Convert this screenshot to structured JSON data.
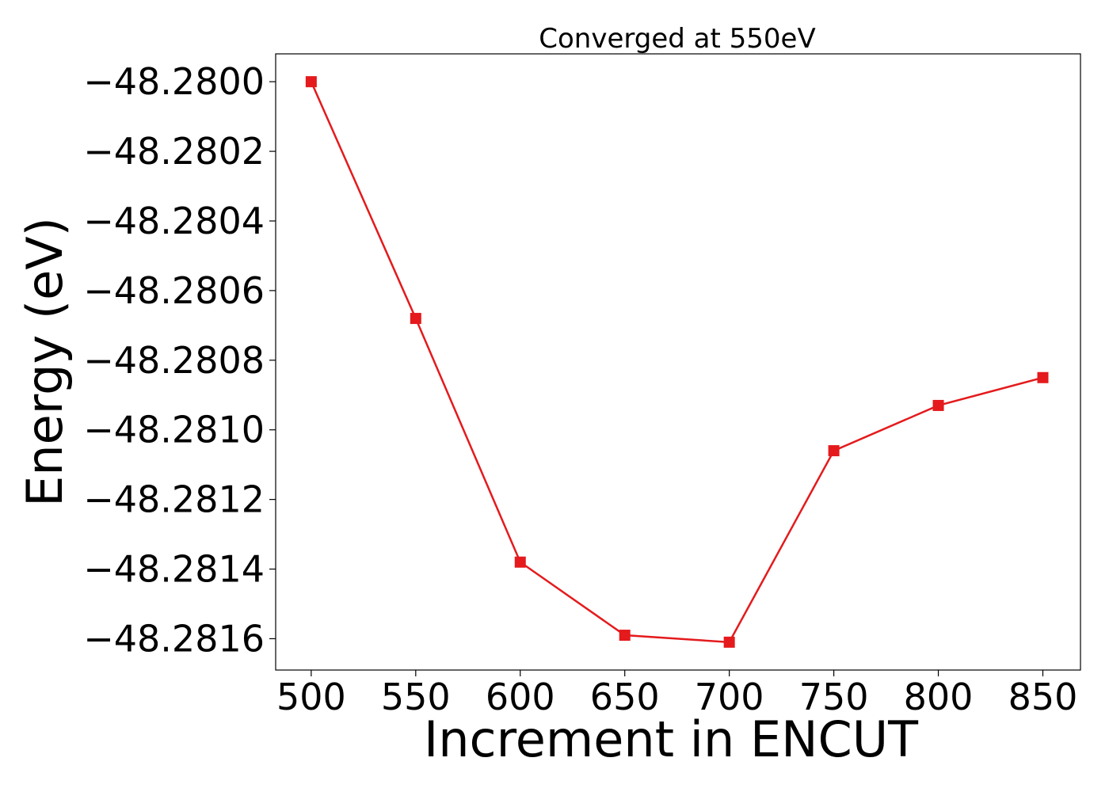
{
  "chart_data": {
    "type": "line",
    "title": "Converged at 550eV",
    "xlabel": "Increment in ENCUT",
    "ylabel": "Energy (eV)",
    "x": [
      500,
      550,
      600,
      650,
      700,
      750,
      800,
      850
    ],
    "series": [
      {
        "values": [
          -48.28,
          -48.28068,
          -48.28138,
          -48.28159,
          -48.28161,
          -48.28106,
          -48.28093,
          -48.28085
        ]
      }
    ],
    "xlim": [
      483,
      868
    ],
    "ylim": [
      -48.28169,
      -48.27992
    ],
    "xticks": [
      500,
      550,
      600,
      650,
      700,
      750,
      800,
      850
    ],
    "xtick_labels": [
      "500",
      "550",
      "600",
      "650",
      "700",
      "750",
      "800",
      "850"
    ],
    "yticks": [
      -48.28,
      -48.2802,
      -48.2804,
      -48.2806,
      -48.2808,
      -48.281,
      -48.2812,
      -48.2814,
      -48.2816
    ],
    "ytick_labels": [
      "−48.2800",
      "−48.2802",
      "−48.2804",
      "−48.2806",
      "−48.2808",
      "−48.2810",
      "−48.2812",
      "−48.2814",
      "−48.2816"
    ],
    "grid": false,
    "marker": "square",
    "line_color": "#e41a1c",
    "marker_color": "#e41a1c",
    "axis_color": "#000000"
  }
}
